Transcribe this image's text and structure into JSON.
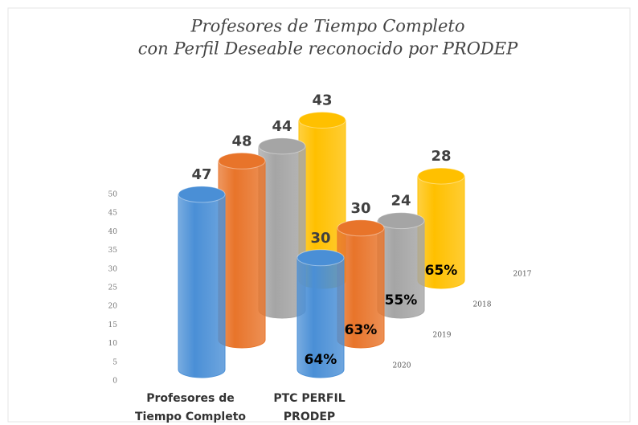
{
  "chart_data": {
    "type": "bar",
    "title": [
      "Profesores de Tiempo Completo",
      "con Perfil Deseable reconocido por PRODEP"
    ],
    "categories": [
      "Profesores de Tiempo Completo",
      "PTC PERFIL PRODEP"
    ],
    "series": [
      {
        "name": "2020",
        "color": "#4a8fd6",
        "values": [
          47,
          30
        ],
        "percent_label": "64%"
      },
      {
        "name": "2019",
        "color": "#e8742a",
        "values": [
          48,
          30
        ],
        "percent_label": "63%"
      },
      {
        "name": "2018",
        "color": "#a5a5a5",
        "values": [
          44,
          24
        ],
        "percent_label": "55%"
      },
      {
        "name": "2017",
        "color": "#ffc000",
        "values": [
          43,
          28
        ],
        "percent_label": "65%"
      }
    ],
    "ylim": [
      0,
      50
    ],
    "yticks": [
      0,
      5,
      10,
      15,
      20,
      25,
      30,
      35,
      40,
      45,
      50
    ]
  }
}
